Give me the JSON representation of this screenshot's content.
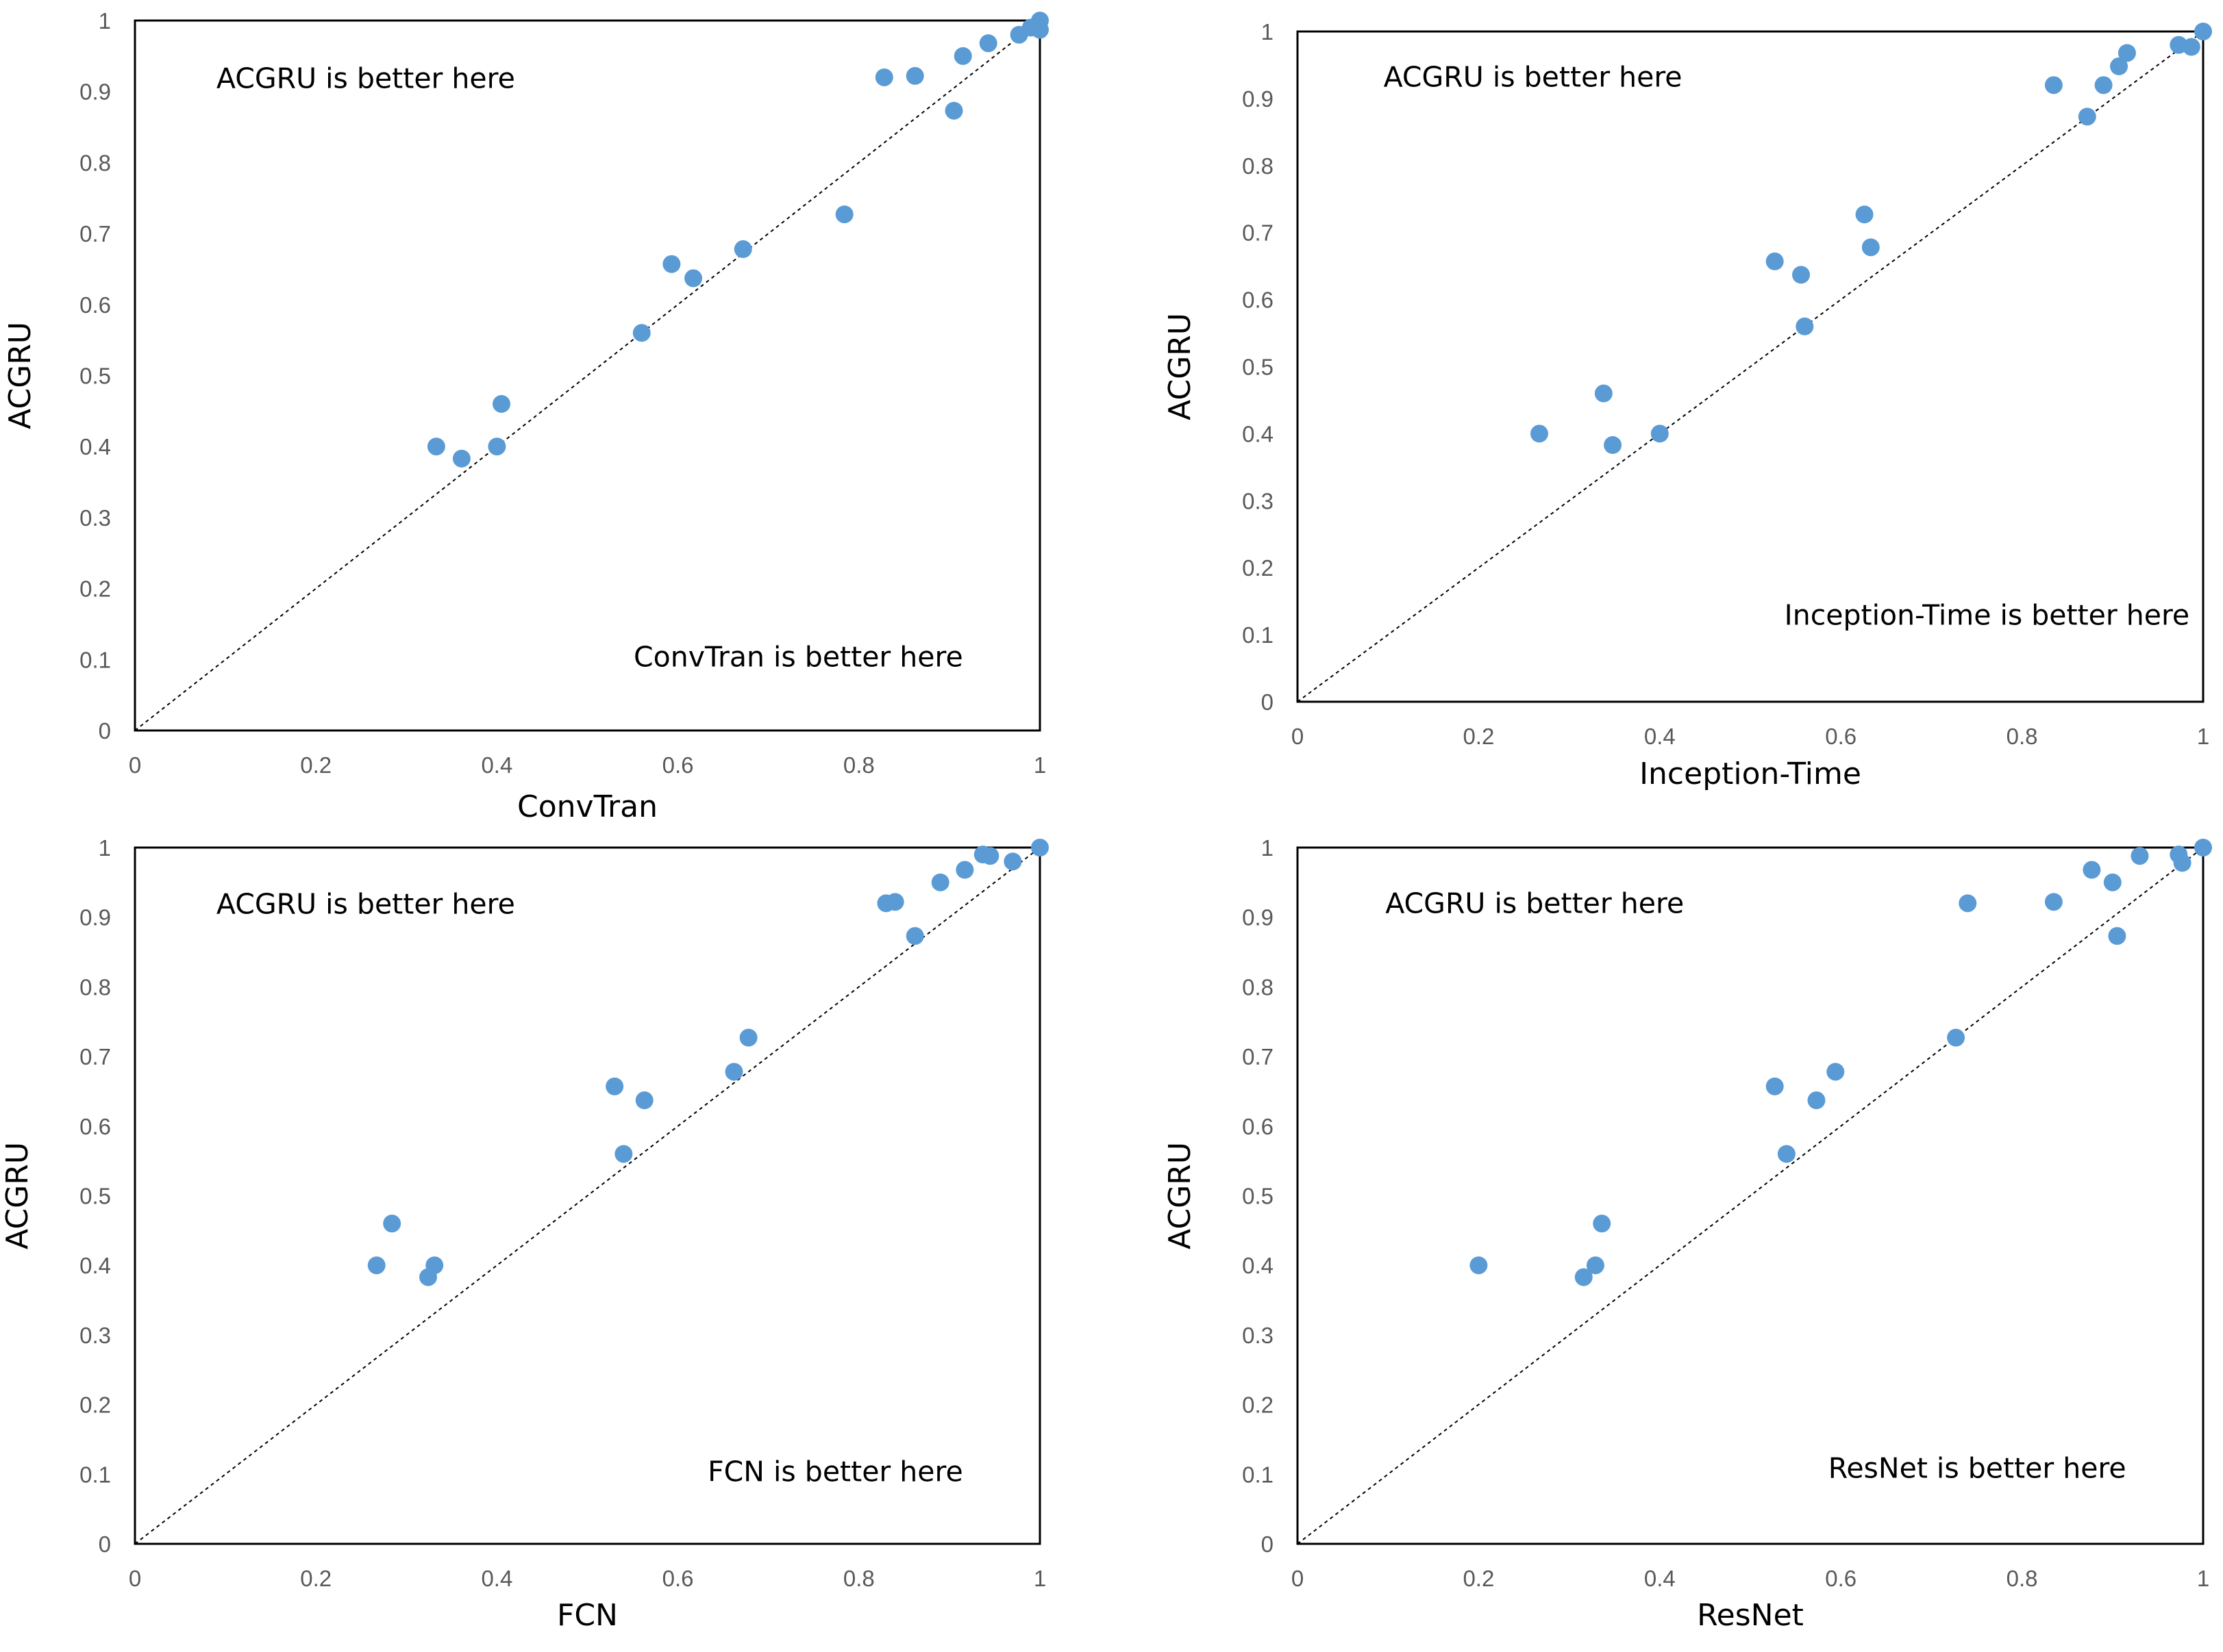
{
  "chart_data": [
    {
      "type": "scatter",
      "title": "",
      "xlabel": "ConvTran",
      "ylabel": "ACGRU",
      "xlim": [
        0,
        1
      ],
      "ylim": [
        0,
        1
      ],
      "xticks": [
        "0",
        "0.2",
        "0.4",
        "0.6",
        "0.8",
        "1"
      ],
      "yticks": [
        "0",
        "0.1",
        "0.2",
        "0.3",
        "0.4",
        "0.5",
        "0.6",
        "0.7",
        "0.8",
        "0.9",
        "1"
      ],
      "marker_color": "#5B9BD5",
      "diagonal": true,
      "annotation_upper": "ACGRU is better here",
      "annotation_lower": "ConvTran is better here",
      "x": [
        0.333,
        0.361,
        0.4,
        0.405,
        0.56,
        0.593,
        0.617,
        0.672,
        0.784,
        0.828,
        0.862,
        0.905,
        0.915,
        0.943,
        0.977,
        0.99,
        1.0,
        1.0
      ],
      "y": [
        0.4,
        0.383,
        0.4,
        0.46,
        0.56,
        0.657,
        0.637,
        0.678,
        0.727,
        0.92,
        0.922,
        0.873,
        0.95,
        0.968,
        0.98,
        0.99,
        1.0,
        0.987
      ]
    },
    {
      "type": "scatter",
      "title": "",
      "xlabel": "Inception-Time",
      "ylabel": "ACGRU",
      "xlim": [
        0,
        1
      ],
      "ylim": [
        0,
        1
      ],
      "xticks": [
        "0",
        "0.2",
        "0.4",
        "0.6",
        "0.8",
        "1"
      ],
      "yticks": [
        "0",
        "0.1",
        "0.2",
        "0.3",
        "0.4",
        "0.5",
        "0.6",
        "0.7",
        "0.8",
        "0.9",
        "1"
      ],
      "marker_color": "#5B9BD5",
      "diagonal": true,
      "annotation_upper": "ACGRU is better here",
      "annotation_lower": "Inception-Time is better here",
      "x": [
        0.267,
        0.338,
        0.348,
        0.4,
        0.527,
        0.556,
        0.56,
        0.626,
        0.633,
        0.835,
        0.872,
        0.89,
        0.907,
        0.916,
        0.973,
        0.987,
        1.0
      ],
      "y": [
        0.4,
        0.46,
        0.383,
        0.4,
        0.657,
        0.637,
        0.56,
        0.727,
        0.678,
        0.92,
        0.873,
        0.92,
        0.948,
        0.968,
        0.98,
        0.977,
        1.0
      ]
    },
    {
      "type": "scatter",
      "title": "",
      "xlabel": "FCN",
      "ylabel": "ACGRU",
      "xlim": [
        0,
        1
      ],
      "ylim": [
        0,
        1
      ],
      "xticks": [
        "0",
        "0.2",
        "0.4",
        "0.6",
        "0.8",
        "1"
      ],
      "yticks": [
        "0",
        "0.1",
        "0.2",
        "0.3",
        "0.4",
        "0.5",
        "0.6",
        "0.7",
        "0.8",
        "0.9",
        "1"
      ],
      "marker_color": "#5B9BD5",
      "diagonal": true,
      "annotation_upper": "ACGRU is better here",
      "annotation_lower": "FCN is better here",
      "x": [
        0.267,
        0.284,
        0.324,
        0.331,
        0.53,
        0.54,
        0.563,
        0.662,
        0.678,
        0.83,
        0.84,
        0.862,
        0.89,
        0.917,
        0.937,
        0.945,
        0.97,
        1.0
      ],
      "y": [
        0.4,
        0.46,
        0.383,
        0.4,
        0.657,
        0.56,
        0.637,
        0.678,
        0.727,
        0.92,
        0.922,
        0.873,
        0.95,
        0.968,
        0.99,
        0.988,
        0.98,
        1.0
      ]
    },
    {
      "type": "scatter",
      "title": "",
      "xlabel": "ResNet",
      "ylabel": "ACGRU",
      "xlim": [
        0,
        1
      ],
      "ylim": [
        0,
        1
      ],
      "xticks": [
        "0",
        "0.2",
        "0.4",
        "0.6",
        "0.8",
        "1"
      ],
      "yticks": [
        "0",
        "0.1",
        "0.2",
        "0.3",
        "0.4",
        "0.5",
        "0.6",
        "0.7",
        "0.8",
        "0.9",
        "1"
      ],
      "marker_color": "#5B9BD5",
      "diagonal": true,
      "annotation_upper": "ACGRU is better here",
      "annotation_lower": "ResNet is better here",
      "x": [
        0.2,
        0.316,
        0.329,
        0.336,
        0.527,
        0.54,
        0.573,
        0.594,
        0.727,
        0.74,
        0.835,
        0.877,
        0.9,
        0.905,
        0.93,
        0.973,
        0.977,
        1.0
      ],
      "y": [
        0.4,
        0.383,
        0.4,
        0.46,
        0.657,
        0.56,
        0.637,
        0.678,
        0.727,
        0.92,
        0.922,
        0.968,
        0.95,
        0.873,
        0.988,
        0.99,
        0.978,
        1.0
      ]
    }
  ]
}
